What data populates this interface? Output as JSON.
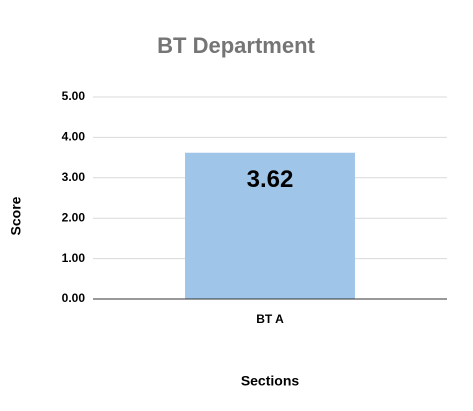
{
  "chart_data": {
    "type": "bar",
    "title": "BT Department",
    "x_label": "Sections",
    "y_label": "Score",
    "categories": [
      "BT A"
    ],
    "values": [
      3.62
    ],
    "color": "#9fc5e8",
    "ylim": [
      0,
      5
    ],
    "yticks": [
      {
        "value": 0,
        "label": "0.00"
      },
      {
        "value": 1,
        "label": "1.00"
      },
      {
        "value": 2,
        "label": "2.00"
      },
      {
        "value": 3,
        "label": "3.00"
      },
      {
        "value": 4,
        "label": "4.00"
      },
      {
        "value": 5,
        "label": "5.00"
      }
    ],
    "grid": true
  }
}
